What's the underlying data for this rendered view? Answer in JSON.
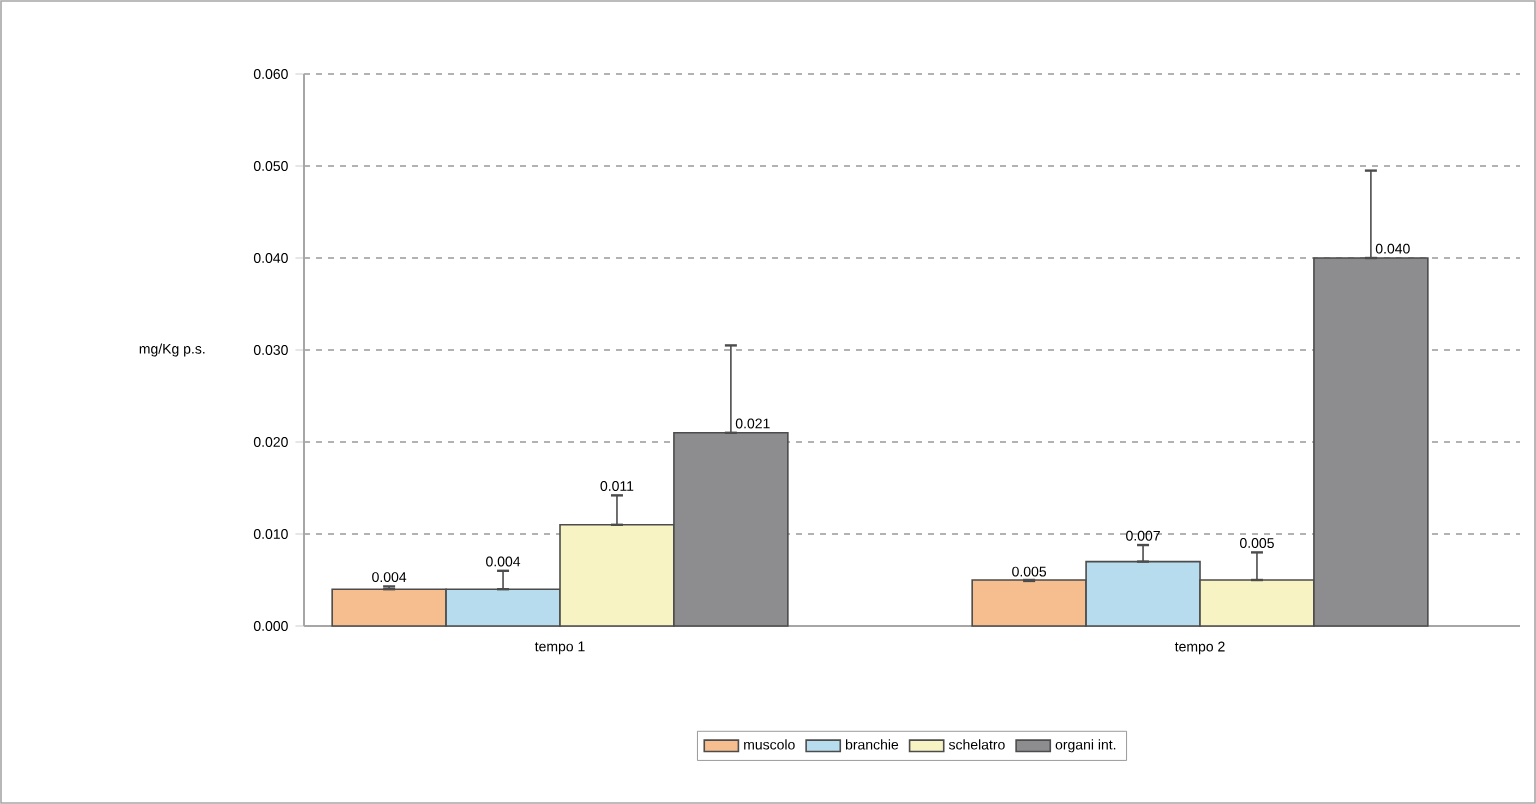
{
  "chart_data": {
    "type": "bar",
    "ylabel": "mg/Kg p.s.",
    "categories": [
      "tempo 1",
      "tempo 2"
    ],
    "series": [
      {
        "name": "muscolo",
        "color": "#f6bd8e",
        "values": [
          0.004,
          0.005
        ],
        "value_labels": [
          "0.004",
          "0.005"
        ],
        "errors": [
          [
            0.004,
            0.0043
          ],
          [
            0.005,
            0.0049
          ]
        ]
      },
      {
        "name": "branchie",
        "color": "#b6dced",
        "values": [
          0.004,
          0.007
        ],
        "value_labels": [
          "0.004",
          "0.007"
        ],
        "errors": [
          [
            0.004,
            0.006
          ],
          [
            0.007,
            0.0088
          ]
        ]
      },
      {
        "name": "schelatro",
        "color": "#f7f3c2",
        "values": [
          0.011,
          0.005
        ],
        "value_labels": [
          "0.011",
          "0.005"
        ],
        "errors": [
          [
            0.011,
            0.0142
          ],
          [
            0.005,
            0.008
          ]
        ]
      },
      {
        "name": "organi int.",
        "color": "#8d8d90",
        "values": [
          0.021,
          0.04
        ],
        "value_labels": [
          "0.021",
          "0.040"
        ],
        "errors": [
          [
            0.021,
            0.0305
          ],
          [
            0.04,
            0.0495
          ]
        ]
      }
    ],
    "ylim": [
      0,
      0.06
    ],
    "yticks": [
      {
        "value": 0,
        "label": "0.000"
      },
      {
        "value": 0.01,
        "label": "0.010"
      },
      {
        "value": 0.02,
        "label": "0.020"
      },
      {
        "value": 0.03,
        "label": "0.030"
      },
      {
        "value": 0.04,
        "label": "0.040"
      },
      {
        "value": 0.05,
        "label": "0.050"
      },
      {
        "value": 0.06,
        "label": "0.060"
      }
    ],
    "grid": "y",
    "legend": "bottom"
  }
}
